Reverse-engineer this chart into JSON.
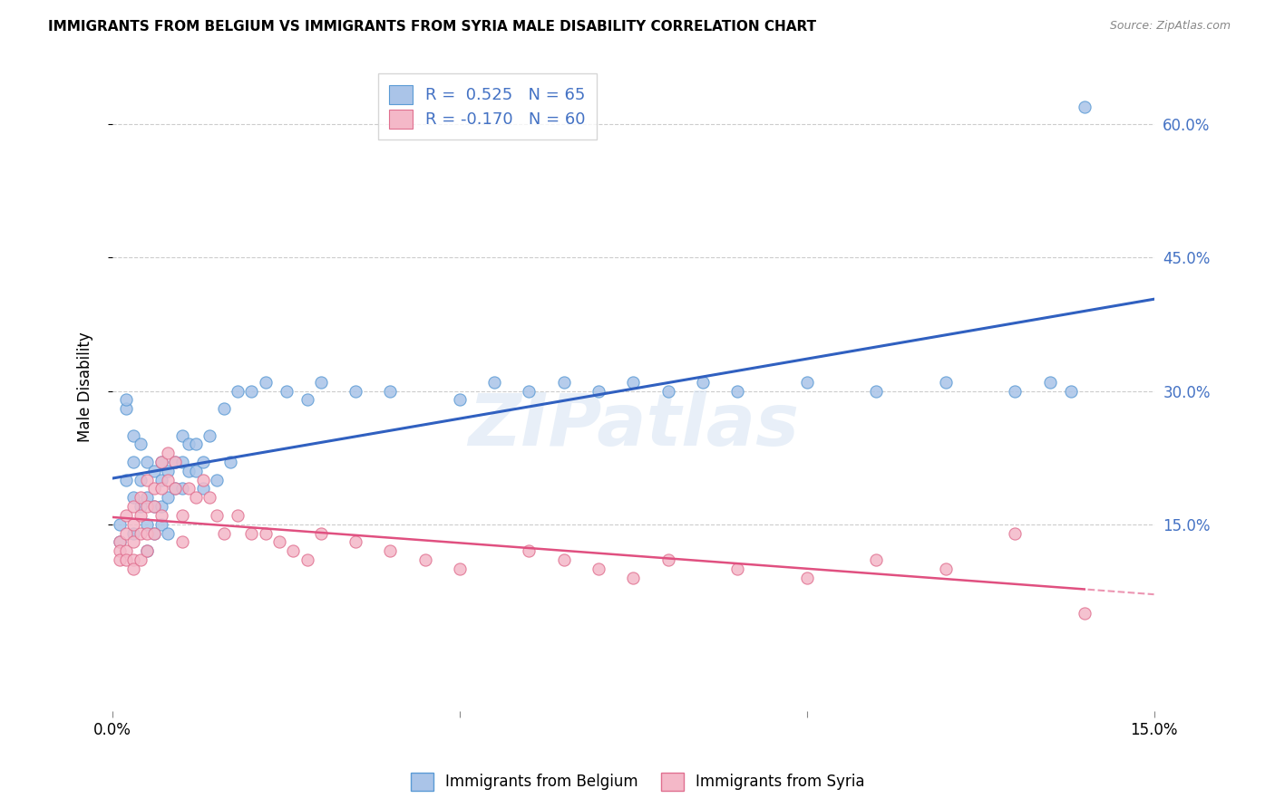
{
  "title": "IMMIGRANTS FROM BELGIUM VS IMMIGRANTS FROM SYRIA MALE DISABILITY CORRELATION CHART",
  "source": "Source: ZipAtlas.com",
  "ylabel": "Male Disability",
  "yticks_labels": [
    "60.0%",
    "45.0%",
    "30.0%",
    "15.0%"
  ],
  "ytick_vals": [
    0.6,
    0.45,
    0.3,
    0.15
  ],
  "xlim": [
    0.0,
    0.15
  ],
  "ylim": [
    -0.06,
    0.67
  ],
  "watermark": "ZIPatlas",
  "belgium_color": "#aac4e8",
  "belgium_edge": "#5b9bd5",
  "syria_color": "#f4b8c8",
  "syria_edge": "#e07090",
  "trend_belgium_color": "#3060c0",
  "trend_syria_color": "#e05080",
  "legend_text_color": "#4472c4",
  "belgium_x": [
    0.001,
    0.001,
    0.002,
    0.002,
    0.002,
    0.003,
    0.003,
    0.003,
    0.003,
    0.004,
    0.004,
    0.004,
    0.005,
    0.005,
    0.005,
    0.005,
    0.006,
    0.006,
    0.006,
    0.007,
    0.007,
    0.007,
    0.007,
    0.008,
    0.008,
    0.008,
    0.009,
    0.009,
    0.01,
    0.01,
    0.01,
    0.011,
    0.011,
    0.012,
    0.012,
    0.013,
    0.013,
    0.014,
    0.015,
    0.016,
    0.017,
    0.018,
    0.02,
    0.022,
    0.025,
    0.028,
    0.03,
    0.035,
    0.04,
    0.05,
    0.055,
    0.06,
    0.065,
    0.07,
    0.075,
    0.08,
    0.085,
    0.09,
    0.1,
    0.11,
    0.12,
    0.13,
    0.135,
    0.138,
    0.14
  ],
  "belgium_y": [
    0.13,
    0.15,
    0.28,
    0.29,
    0.2,
    0.25,
    0.22,
    0.18,
    0.14,
    0.24,
    0.2,
    0.17,
    0.22,
    0.18,
    0.15,
    0.12,
    0.21,
    0.17,
    0.14,
    0.22,
    0.2,
    0.17,
    0.15,
    0.21,
    0.18,
    0.14,
    0.22,
    0.19,
    0.25,
    0.22,
    0.19,
    0.24,
    0.21,
    0.24,
    0.21,
    0.22,
    0.19,
    0.25,
    0.2,
    0.28,
    0.22,
    0.3,
    0.3,
    0.31,
    0.3,
    0.29,
    0.31,
    0.3,
    0.3,
    0.29,
    0.31,
    0.3,
    0.31,
    0.3,
    0.31,
    0.3,
    0.31,
    0.3,
    0.31,
    0.3,
    0.31,
    0.3,
    0.31,
    0.3,
    0.62
  ],
  "syria_x": [
    0.001,
    0.001,
    0.001,
    0.002,
    0.002,
    0.002,
    0.002,
    0.003,
    0.003,
    0.003,
    0.003,
    0.003,
    0.004,
    0.004,
    0.004,
    0.004,
    0.005,
    0.005,
    0.005,
    0.005,
    0.006,
    0.006,
    0.006,
    0.007,
    0.007,
    0.007,
    0.008,
    0.008,
    0.009,
    0.009,
    0.01,
    0.01,
    0.011,
    0.012,
    0.013,
    0.014,
    0.015,
    0.016,
    0.018,
    0.02,
    0.022,
    0.024,
    0.026,
    0.028,
    0.03,
    0.035,
    0.04,
    0.045,
    0.05,
    0.06,
    0.065,
    0.07,
    0.075,
    0.08,
    0.09,
    0.1,
    0.11,
    0.12,
    0.13,
    0.14
  ],
  "syria_y": [
    0.13,
    0.12,
    0.11,
    0.16,
    0.14,
    0.12,
    0.11,
    0.17,
    0.15,
    0.13,
    0.11,
    0.1,
    0.18,
    0.16,
    0.14,
    0.11,
    0.2,
    0.17,
    0.14,
    0.12,
    0.19,
    0.17,
    0.14,
    0.22,
    0.19,
    0.16,
    0.23,
    0.2,
    0.22,
    0.19,
    0.16,
    0.13,
    0.19,
    0.18,
    0.2,
    0.18,
    0.16,
    0.14,
    0.16,
    0.14,
    0.14,
    0.13,
    0.12,
    0.11,
    0.14,
    0.13,
    0.12,
    0.11,
    0.1,
    0.12,
    0.11,
    0.1,
    0.09,
    0.11,
    0.1,
    0.09,
    0.11,
    0.1,
    0.14,
    0.05
  ]
}
